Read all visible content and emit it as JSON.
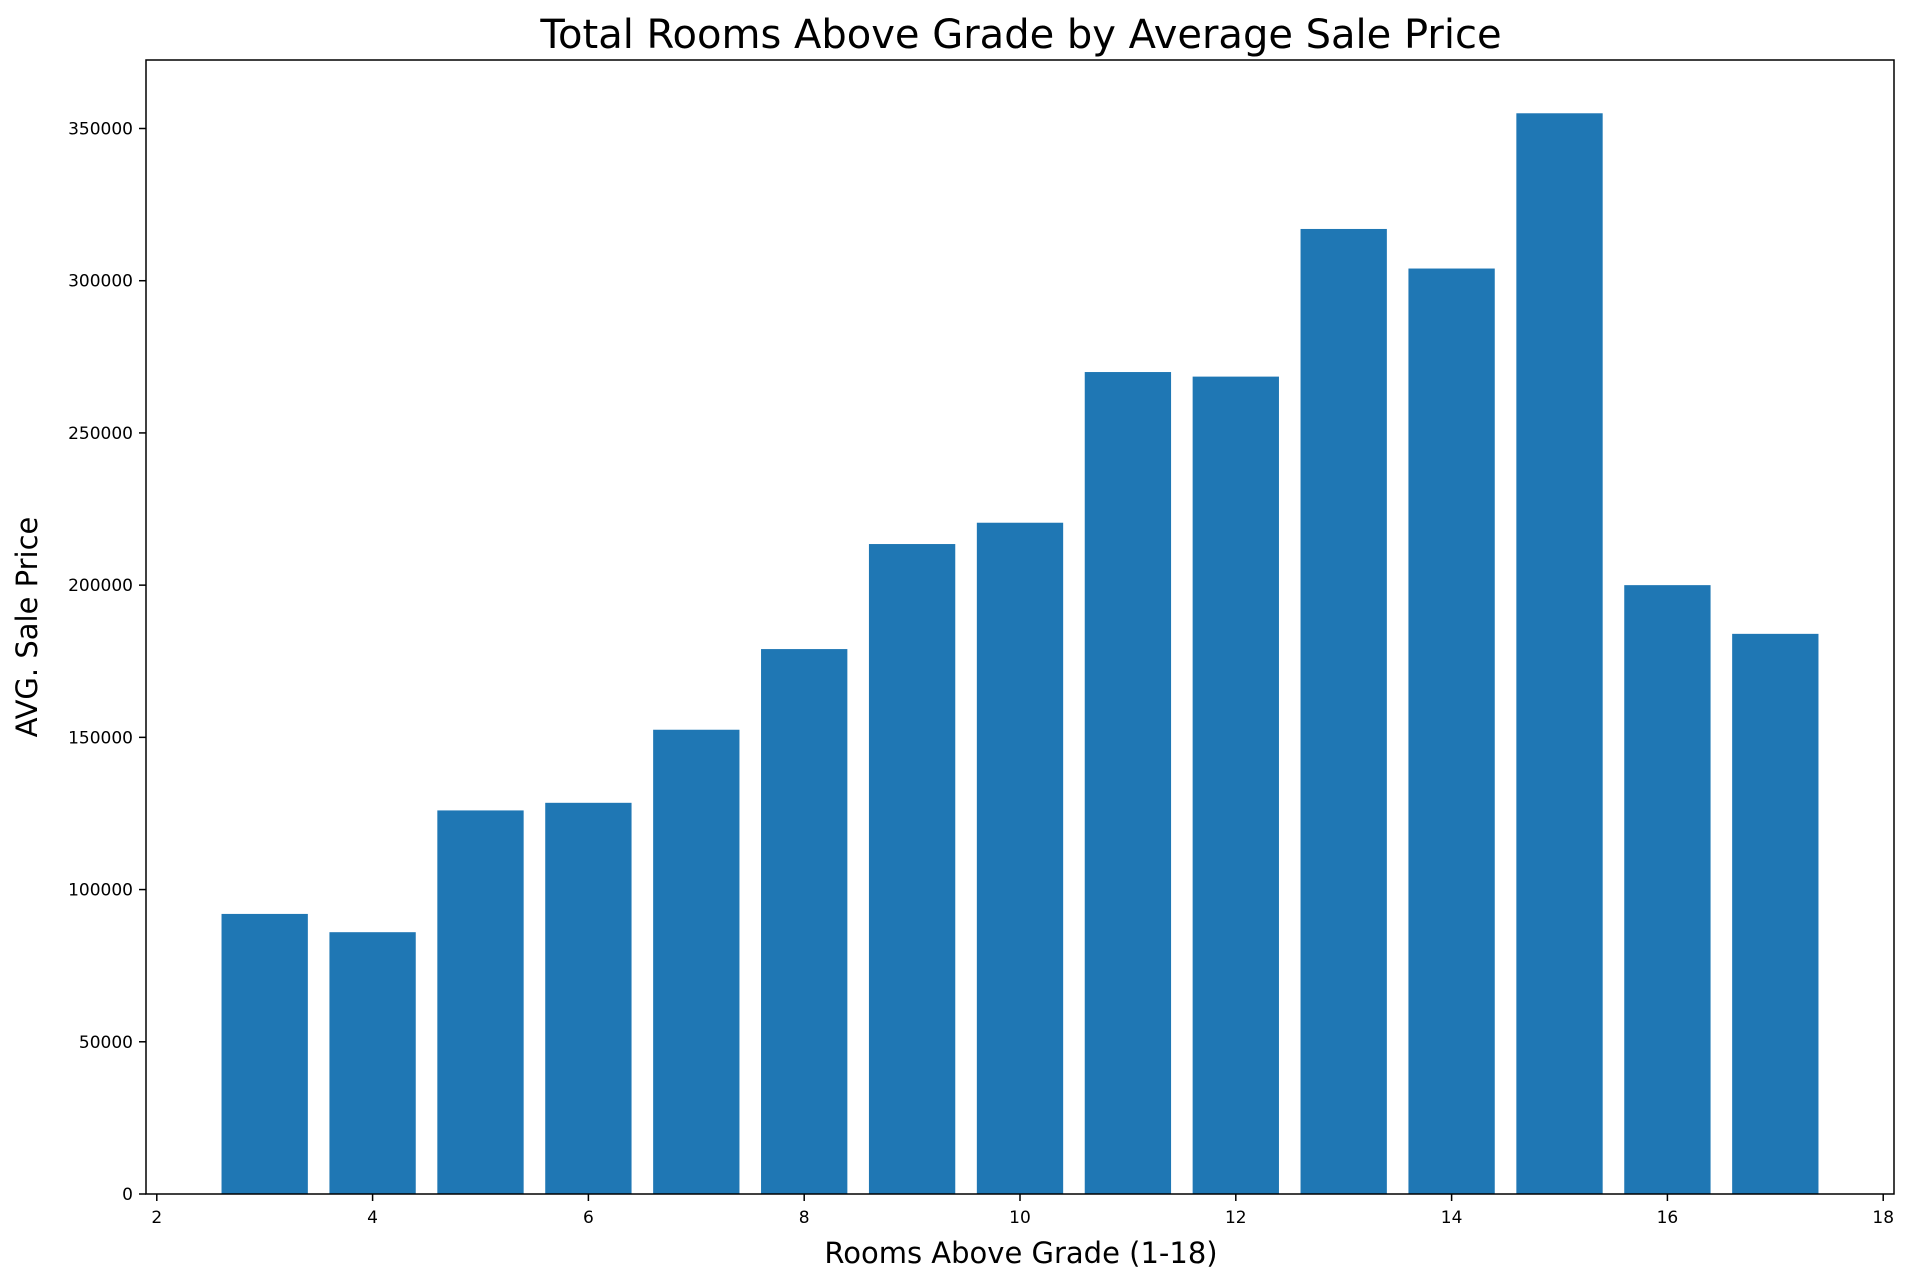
{
  "chart_data": {
    "type": "bar",
    "title": "Total Rooms Above Grade by Average Sale Price",
    "xlabel": "Rooms Above Grade (1-18)",
    "ylabel": "AVG. Sale Price",
    "x": [
      3,
      4,
      5,
      6,
      7,
      8,
      9,
      10,
      11,
      12,
      13,
      14,
      15,
      16,
      17
    ],
    "values": [
      92000,
      86000,
      126000,
      128500,
      152500,
      179000,
      213500,
      220500,
      270000,
      268500,
      317000,
      304000,
      355000,
      200000,
      184000
    ],
    "xlim": [
      1.9,
      18.1
    ],
    "ylim": [
      0,
      372500
    ],
    "xticks": [
      2,
      4,
      6,
      8,
      10,
      12,
      14,
      16,
      18
    ],
    "yticks": [
      0,
      50000,
      100000,
      150000,
      200000,
      250000,
      300000,
      350000
    ],
    "bar_width": 0.8,
    "bar_color": "#1f77b4",
    "grid": false,
    "legend": "none"
  }
}
